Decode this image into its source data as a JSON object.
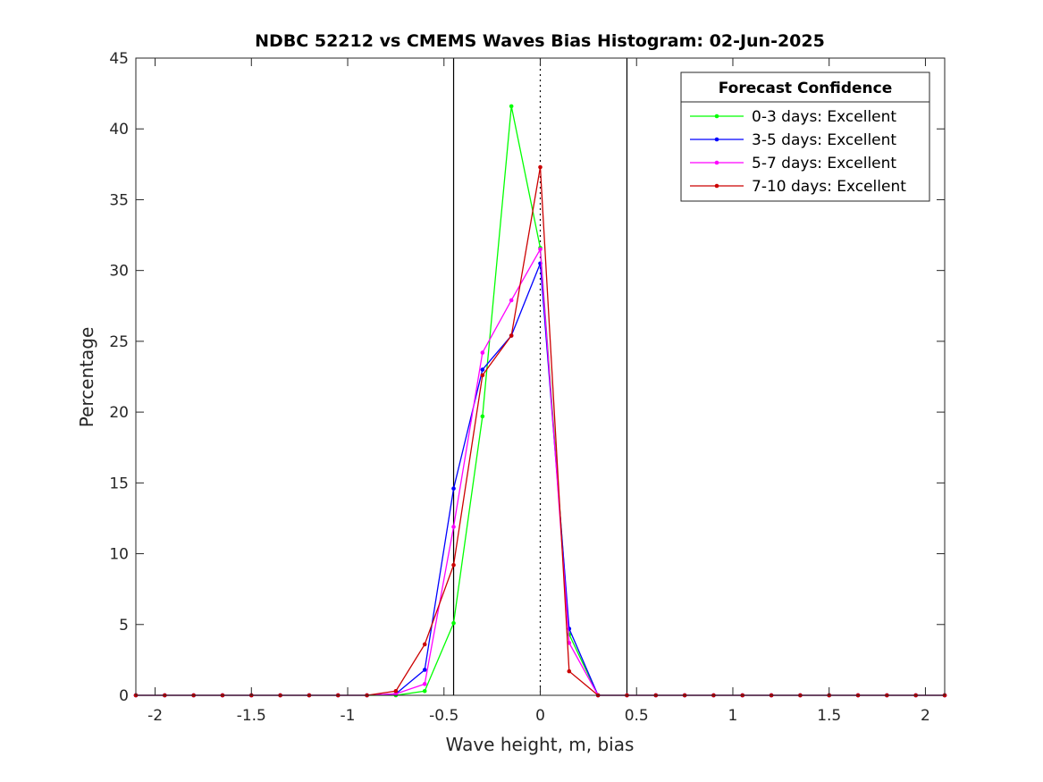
{
  "chart_data": {
    "type": "line",
    "title": "NDBC 52212 vs CMEMS Waves Bias Histogram: 02-Jun-2025",
    "xlabel": "Wave height, m, bias",
    "ylabel": "Percentage",
    "xlim": [
      -2.1,
      2.1
    ],
    "ylim": [
      0,
      45
    ],
    "xticks": [
      -2,
      -1.5,
      -1,
      -0.5,
      0,
      0.5,
      1,
      1.5,
      2
    ],
    "xtick_labels": [
      "-2",
      "-1.5",
      "-1",
      "-0.5",
      "0",
      "0.5",
      "1",
      "1.5",
      "2"
    ],
    "yticks": [
      0,
      5,
      10,
      15,
      20,
      25,
      30,
      35,
      40,
      45
    ],
    "ytick_labels": [
      "0",
      "5",
      "10",
      "15",
      "20",
      "25",
      "30",
      "35",
      "40",
      "45"
    ],
    "grid": false,
    "legend_title": "Forecast Confidence",
    "legend_position": "top-right",
    "reference_lines": [
      {
        "x": -0.45,
        "style": "solid"
      },
      {
        "x": 0,
        "style": "dotted"
      },
      {
        "x": 0.45,
        "style": "solid"
      }
    ],
    "x": [
      -2.1,
      -1.95,
      -1.8,
      -1.65,
      -1.5,
      -1.35,
      -1.2,
      -1.05,
      -0.9,
      -0.75,
      -0.6,
      -0.45,
      -0.3,
      -0.15,
      0,
      0.15,
      0.3,
      0.45,
      0.6,
      0.75,
      0.9,
      1.05,
      1.2,
      1.35,
      1.5,
      1.65,
      1.8,
      1.95,
      2.1
    ],
    "series": [
      {
        "name": "0-3 days: Excellent",
        "color": "#00ff00",
        "values": [
          0,
          0,
          0,
          0,
          0,
          0,
          0,
          0,
          0,
          0,
          0.3,
          5.1,
          19.7,
          41.6,
          31.6,
          4.3,
          0,
          0,
          0,
          0,
          0,
          0,
          0,
          0,
          0,
          0,
          0,
          0,
          0
        ]
      },
      {
        "name": "3-5 days: Excellent",
        "color": "#0000ff",
        "values": [
          0,
          0,
          0,
          0,
          0,
          0,
          0,
          0,
          0,
          0.1,
          1.8,
          14.6,
          23.0,
          25.4,
          30.5,
          4.7,
          0,
          0,
          0,
          0,
          0,
          0,
          0,
          0,
          0,
          0,
          0,
          0,
          0
        ]
      },
      {
        "name": "5-7 days: Excellent",
        "color": "#ff00ff",
        "values": [
          0,
          0,
          0,
          0,
          0,
          0,
          0,
          0,
          0,
          0.1,
          0.8,
          11.9,
          24.2,
          27.9,
          31.5,
          3.7,
          0,
          0,
          0,
          0,
          0,
          0,
          0,
          0,
          0,
          0,
          0,
          0,
          0
        ]
      },
      {
        "name": "7-10 days: Excellent",
        "color": "#cc0000",
        "values": [
          0,
          0,
          0,
          0,
          0,
          0,
          0,
          0,
          0,
          0.3,
          3.6,
          9.2,
          22.6,
          25.4,
          37.3,
          1.7,
          0,
          0,
          0,
          0,
          0,
          0,
          0,
          0,
          0,
          0,
          0,
          0,
          0
        ]
      }
    ]
  }
}
